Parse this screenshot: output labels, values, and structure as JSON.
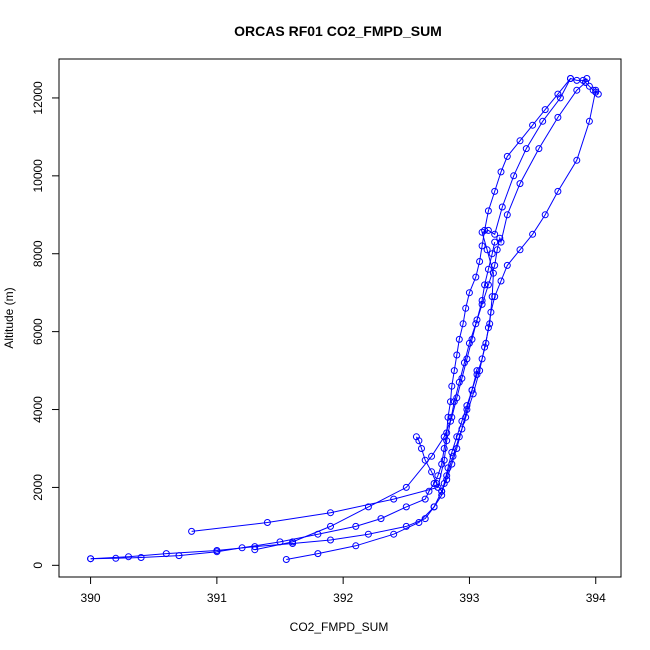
{
  "chart_data": {
    "type": "line",
    "title": "ORCAS RF01 CO2_FMPD_SUM",
    "xlabel": "CO2_FMPD_SUM",
    "ylabel": "Altitude (m)",
    "xlim": [
      389.75,
      394.2
    ],
    "ylim": [
      -300,
      13000
    ],
    "xticks": [
      "390",
      "391",
      "392",
      "393",
      "394"
    ],
    "yticks": [
      "0",
      "2000",
      "4000",
      "6000",
      "8000",
      "10000",
      "12000"
    ],
    "grid": false,
    "legend": "none",
    "line_color": "#0000ff",
    "marker": "open-circle",
    "series": [
      {
        "x": [
          393.8,
          393.7,
          393.6,
          393.5,
          393.4,
          393.3,
          393.25,
          393.2,
          393.15,
          393.12,
          393.1,
          393.08,
          393.05,
          393.0,
          392.97,
          392.95,
          392.92,
          392.9,
          392.88,
          392.86,
          392.85,
          392.83,
          392.82,
          392.8,
          392.78,
          392.75,
          392.72,
          392.68,
          392.65,
          392.5,
          392.3,
          392.1,
          391.8,
          391.5,
          391.2,
          391.0,
          390.7,
          390.4,
          390.2,
          390.0
        ],
        "y": [
          12500,
          12100,
          11700,
          11300,
          10900,
          10500,
          10100,
          9600,
          9100,
          8600,
          8200,
          7800,
          7400,
          7000,
          6600,
          6200,
          5800,
          5400,
          5000,
          4600,
          4200,
          3800,
          3400,
          3000,
          2600,
          2300,
          2100,
          1900,
          1700,
          1500,
          1200,
          1000,
          800,
          600,
          450,
          350,
          250,
          200,
          180,
          170
        ]
      },
      {
        "x": [
          390.0,
          390.3,
          390.6,
          391.0,
          391.3,
          391.6,
          391.9,
          392.2,
          392.5,
          392.65,
          392.72,
          392.78,
          392.8,
          392.83,
          392.86,
          392.9,
          392.94,
          392.98,
          393.02,
          393.06,
          393.1,
          393.13,
          393.15,
          393.17,
          393.2,
          393.25,
          393.3,
          393.4,
          393.5,
          393.6,
          393.7,
          393.85,
          393.95,
          394.0
        ],
        "y": [
          170,
          220,
          300,
          380,
          480,
          560,
          650,
          800,
          1000,
          1200,
          1500,
          1800,
          2100,
          2500,
          2900,
          3300,
          3700,
          4100,
          4500,
          4900,
          5300,
          5700,
          6100,
          6500,
          6900,
          7300,
          7700,
          8100,
          8500,
          9000,
          9600,
          10400,
          11400,
          12200
        ]
      },
      {
        "x": [
          390.8,
          391.4,
          391.9,
          392.4,
          392.75,
          392.8,
          392.82,
          392.85,
          392.88,
          392.92,
          392.96,
          393.0,
          393.05,
          393.1,
          393.15,
          393.2,
          393.22,
          393.24,
          393.25,
          393.3,
          393.4,
          393.55,
          393.7,
          393.85,
          393.92,
          393.95,
          393.98,
          394.0,
          394.02
        ],
        "y": [
          870,
          1100,
          1350,
          1700,
          2000,
          2700,
          3200,
          3700,
          4200,
          4700,
          5200,
          5700,
          6200,
          6700,
          7200,
          7700,
          8100,
          8400,
          8300,
          9000,
          9800,
          10700,
          11500,
          12200,
          12400,
          12300,
          12200,
          12150,
          12100
        ]
      },
      {
        "x": [
          391.55,
          391.8,
          392.1,
          392.4,
          392.6,
          392.72,
          392.78,
          392.82,
          392.87,
          392.92,
          392.97,
          393.03,
          393.08,
          393.12,
          393.16,
          393.18,
          393.19,
          393.14,
          393.1,
          393.15,
          393.2,
          393.26,
          393.35,
          393.45,
          393.58,
          393.72,
          393.8,
          393.85,
          393.9,
          393.92,
          393.93
        ],
        "y": [
          150,
          300,
          500,
          800,
          1100,
          1500,
          1900,
          2300,
          2800,
          3300,
          3800,
          4400,
          5000,
          5600,
          6200,
          6900,
          7500,
          8100,
          8550,
          8600,
          8500,
          9200,
          10000,
          10700,
          11400,
          12000,
          12500,
          12450,
          12450,
          12400,
          12500
        ]
      },
      {
        "x": [
          392.58,
          392.6,
          392.62,
          392.65,
          392.7,
          392.74,
          392.78,
          392.82,
          392.86,
          392.9,
          392.94,
          392.98,
          393.02,
          393.06
        ],
        "y": [
          3300,
          3200,
          3000,
          2700,
          2400,
          2100,
          1900,
          2200,
          2600,
          3000,
          3500,
          4000,
          4500,
          5000
        ]
      },
      {
        "x": [
          393.2,
          393.18,
          393.15,
          393.12,
          393.1,
          393.06,
          393.02,
          392.98,
          392.94,
          392.9,
          392.86,
          392.8,
          392.7,
          392.5,
          392.2,
          391.9,
          391.6,
          391.3
        ],
        "y": [
          8300,
          8000,
          7600,
          7200,
          6800,
          6300,
          5800,
          5300,
          4800,
          4300,
          3800,
          3300,
          2800,
          2000,
          1500,
          1000,
          600,
          400
        ]
      }
    ]
  }
}
